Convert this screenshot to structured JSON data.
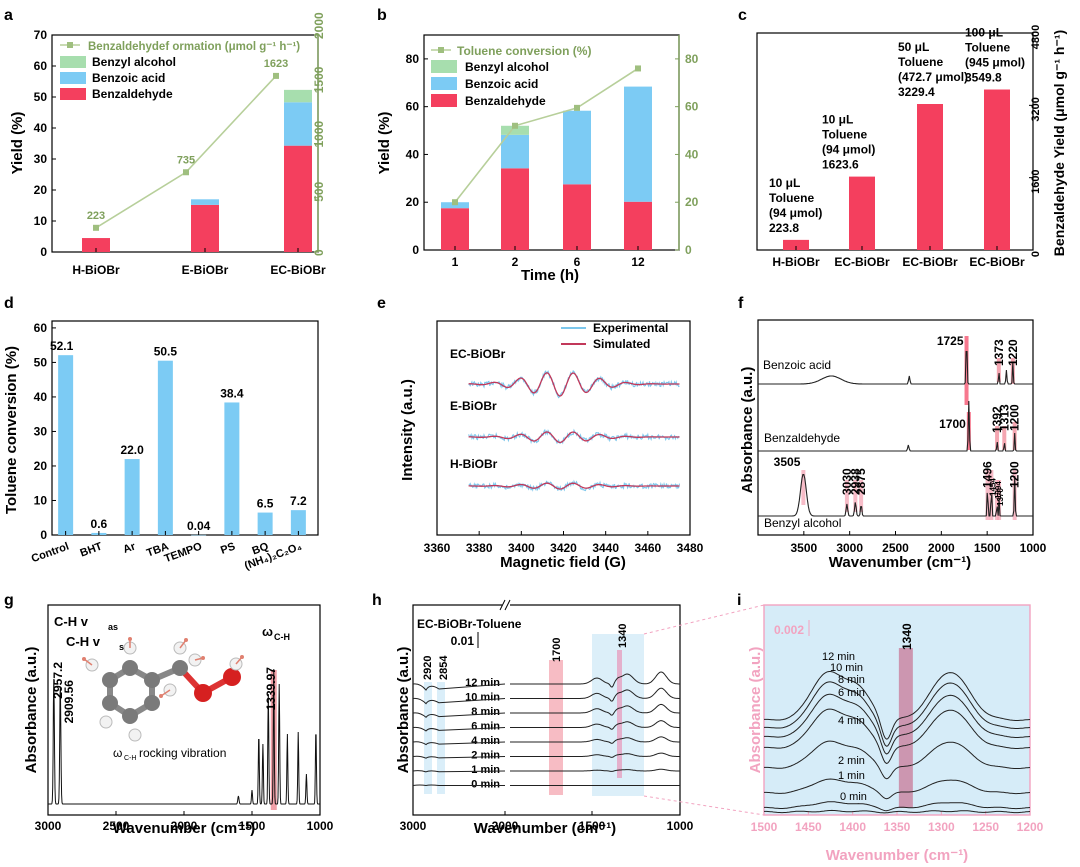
{
  "colors": {
    "red": "#f43f5e",
    "blue": "#7ccbf4",
    "green": "#a7deae",
    "olive": "#7fa05c",
    "black": "#111111",
    "pink": "#f2a3c0",
    "inset": "#d6ecf8",
    "panel_g_mark": "#f2a0a8"
  },
  "panels": {
    "a": "a",
    "b": "b",
    "c": "c",
    "d": "d",
    "e": "e",
    "f": "f",
    "g": "g",
    "h": "h",
    "i": "i"
  },
  "chart_data": [
    {
      "panel": "a",
      "type": "bar",
      "stacked": true,
      "categories": [
        "H-BiOBr",
        "E-BiOBr",
        "EC-BiOBr"
      ],
      "series": [
        {
          "name": "Benzaldehyde",
          "values": [
            4.5,
            15.2,
            34.3
          ]
        },
        {
          "name": "Benzoic acid",
          "values": [
            0,
            1.8,
            14
          ]
        },
        {
          "name": "Benzyl alcohol",
          "values": [
            0,
            0,
            4
          ]
        }
      ],
      "line_series": {
        "name": "Benzaldehydef ormation (μmol g⁻¹ h⁻¹)",
        "values": [
          223,
          735,
          1623
        ],
        "point_labels": [
          "223",
          "735",
          "1623"
        ]
      },
      "ylabel": "Yield (%)",
      "ylim": [
        0,
        70
      ],
      "yticks": [
        "0",
        "10",
        "20",
        "30",
        "40",
        "50",
        "60",
        "70"
      ],
      "y2lim": [
        0,
        2000
      ],
      "y2ticks": [
        "0",
        "500",
        "1000",
        "1500",
        "2000"
      ]
    },
    {
      "panel": "b",
      "type": "bar",
      "stacked": true,
      "categories": [
        "1",
        "2",
        "6",
        "12"
      ],
      "series": [
        {
          "name": "Benzaldehyde",
          "values": [
            17.5,
            34.2,
            27.5,
            20.2
          ]
        },
        {
          "name": "Benzoic acid",
          "values": [
            2.5,
            14,
            30.8,
            48.2
          ]
        },
        {
          "name": "Benzyl alcohol",
          "values": [
            0,
            3.8,
            0,
            0
          ]
        }
      ],
      "line_series": {
        "name": "Toluene conversion (%)",
        "values": [
          20,
          52,
          59.5,
          76
        ]
      },
      "xlabel": "Time (h)",
      "ylabel": "Yield (%)",
      "ylim": [
        0,
        90
      ],
      "yticks": [
        "0",
        "20",
        "40",
        "60",
        "80"
      ],
      "y2lim": [
        0,
        90
      ],
      "y2ticks": [
        "0",
        "20",
        "40",
        "60",
        "80"
      ]
    },
    {
      "panel": "c",
      "type": "bar",
      "categories": [
        "H-BiOBr",
        "EC-BiOBr",
        "EC-BiOBr",
        "EC-BiOBr"
      ],
      "values": [
        223.8,
        1623.6,
        3229.4,
        3549.8
      ],
      "annotations": [
        {
          "lines": [
            "10 μL",
            "Toluene",
            "(94 μmol)",
            "223.8"
          ]
        },
        {
          "lines": [
            "10 μL",
            "Toluene",
            "(94 μmol)",
            "1623.6"
          ]
        },
        {
          "lines": [
            "50 μL",
            "Toluene",
            "(472.7 μmol)",
            "3229.4"
          ]
        },
        {
          "lines": [
            "100 μL",
            "Toluene",
            "(945 μmol)",
            "3549.8"
          ]
        }
      ],
      "ylabel": "Benzaldehyde Yield (μmol g⁻¹ h⁻¹)",
      "ylim": [
        0,
        4800
      ],
      "yticks": [
        "0",
        "1600",
        "3200",
        "4800"
      ]
    },
    {
      "panel": "d",
      "type": "bar",
      "categories": [
        "Control",
        "BHT",
        "Ar",
        "TBA",
        "TEMPO",
        "PS",
        "BQ",
        "(NH₄)₂C₂O₄"
      ],
      "values": [
        52.1,
        0.6,
        22.0,
        50.5,
        0.04,
        38.4,
        6.5,
        7.2
      ],
      "value_labels": [
        "52.1",
        "0.6",
        "22.0",
        "50.5",
        "0.04",
        "38.4",
        "6.5",
        "7.2"
      ],
      "ylabel": "Toluene conversion (%)",
      "ylim": [
        0,
        62
      ],
      "yticks": [
        "0",
        "10",
        "20",
        "30",
        "40",
        "50",
        "60"
      ]
    },
    {
      "panel": "e",
      "type": "line",
      "series": [
        {
          "name": "Experimental"
        },
        {
          "name": "Simulated"
        }
      ],
      "traces": [
        "EC-BiOBr",
        "E-BiOBr",
        "H-BiOBr"
      ],
      "trace_amplitude": [
        1.0,
        0.45,
        0.25
      ],
      "xlabel": "Magnetic field (G)",
      "ylabel": "Intensity (a.u.)",
      "xlim": [
        3360,
        3480
      ],
      "xticks": [
        "3360",
        "3380",
        "3400",
        "3420",
        "3440",
        "3460",
        "3480"
      ]
    },
    {
      "panel": "f",
      "type": "line",
      "traces": [
        "Benzoic acid",
        "Benzaldehyde",
        "Benzyl alcohol"
      ],
      "peak_labels": [
        [
          "1725",
          "1373",
          "1220"
        ],
        [
          "1700",
          "1392",
          "1313",
          "1200"
        ],
        [
          "3505",
          "3030",
          "2938",
          "2875",
          "1496",
          "1454",
          "1370",
          "1394",
          "1200"
        ]
      ],
      "xlabel": "Wavenumber (cm⁻¹)",
      "ylabel": "Absorbance (a.u.)",
      "xlim": [
        4000,
        1000
      ],
      "xticks": [
        "3500",
        "3000",
        "2500",
        "2000",
        "1500",
        "1000"
      ]
    },
    {
      "panel": "g",
      "type": "line",
      "peaks": [
        2957.2,
        2909.56,
        1339.97
      ],
      "peak_labels": [
        "2957.2",
        "2909.56",
        "1339.97"
      ],
      "labels": {
        "vas": "C-H v",
        "vas_sub": "as",
        "vs": "C-H v",
        "vs_sub": "s",
        "omega": "ω",
        "omega_sub": "C-H",
        "rock": "ω",
        "rock_sub": "C-H",
        "rock_text": "rocking vibration"
      },
      "xlabel": "Wavenumber (cm⁻¹)",
      "ylabel": "Absorbance (a.u.)",
      "xlim": [
        3000,
        1000
      ],
      "xticks": [
        "3000",
        "2500",
        "2000",
        "1500",
        "1000"
      ]
    },
    {
      "panel": "h",
      "type": "line",
      "title": "EC-BiOBr-Toluene",
      "scale_label": "0.01",
      "times": [
        "12 min",
        "10 min",
        "8 min",
        "6 min",
        "4 min",
        "2 min",
        "1 min",
        "0 min"
      ],
      "band_labels": [
        "2920",
        "2854",
        "1700",
        "1340"
      ],
      "xlabel": "Wavenumber (cm⁻¹)",
      "ylabel": "Absorbance (a.u.)",
      "xticks": [
        "3000",
        "2000",
        "1500",
        "1000"
      ]
    },
    {
      "panel": "i",
      "type": "line",
      "scale_label": "0.002",
      "band_label": "1340",
      "times": [
        "12 min",
        "10 min",
        "8 min",
        "6 min",
        "4 min",
        "2 min",
        "1 min",
        "0 min"
      ],
      "xlabel": "Wavenumber (cm⁻¹)",
      "ylabel": "Absorbance (a.u.)",
      "xlim": [
        1500,
        1200
      ],
      "xticks": [
        "1500",
        "1450",
        "1400",
        "1350",
        "1300",
        "1250",
        "1200"
      ]
    }
  ]
}
